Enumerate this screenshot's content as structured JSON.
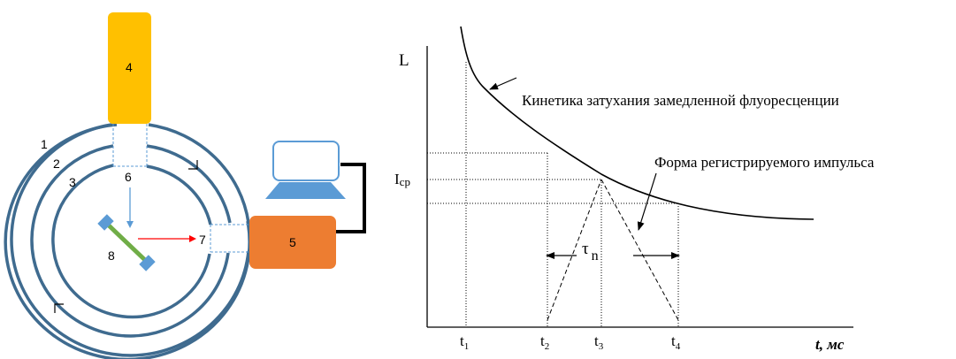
{
  "setup": {
    "labels": {
      "ring_1": "1",
      "ring_2": "2",
      "ring_3": "3",
      "light_source": "4",
      "detector": "5",
      "entrance_window": "6",
      "exit_window": "7",
      "sample": "8"
    },
    "colors": {
      "rings": "#3f6b8f",
      "light_source": "#ffc000",
      "detector": "#ed7d31",
      "sample_body": "#70ad47",
      "sample_caps": "#5b9bd5",
      "excitation_arrow": "#5b9bd5",
      "emission_arrow": "#ff0000",
      "monitor_screen_border": "#5b9bd5",
      "monitor_base": "#5b9bd5",
      "cable": "#000000"
    }
  },
  "graph": {
    "y_axis_label": "L",
    "i_avg_label": "I",
    "i_avg_subscript": "ср",
    "x_axis_label": "t, мс",
    "ticks": [
      {
        "main": "t",
        "sub": "1"
      },
      {
        "main": "t",
        "sub": "2"
      },
      {
        "main": "t",
        "sub": "3"
      },
      {
        "main": "t",
        "sub": "4"
      }
    ],
    "annotation_decay": "Кинетика затухания замедленной флуоресценции",
    "annotation_pulse": "Форма регистрируемого импульса",
    "tau_main": "τ",
    "tau_sub": "n"
  }
}
